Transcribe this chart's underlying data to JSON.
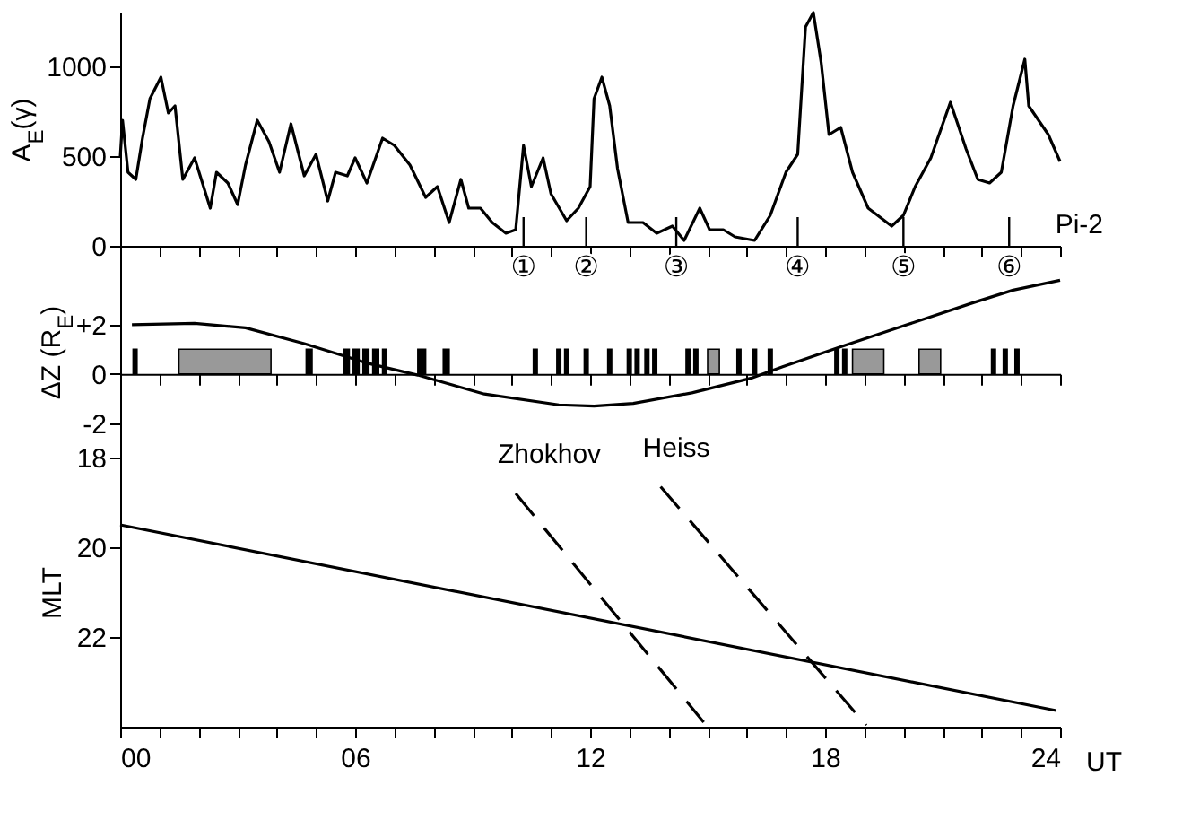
{
  "chart_data": [
    {
      "type": "line",
      "ylabel": "A$_{E}$(γ)",
      "color": "#000000",
      "xlim": [
        0,
        24
      ],
      "ylim": [
        0,
        1300
      ],
      "yticks": [
        0,
        500,
        1000
      ],
      "tick_labels": "y",
      "xticks": [
        {
          "value": 0,
          "label": null
        },
        {
          "value": 1,
          "label": null
        },
        {
          "value": 2,
          "label": null
        },
        {
          "value": 3,
          "label": null
        },
        {
          "value": 4,
          "label": null
        },
        {
          "value": 5,
          "label": null
        },
        {
          "value": 6,
          "label": null
        },
        {
          "value": 7,
          "label": null
        },
        {
          "value": 8,
          "label": null
        },
        {
          "value": 9,
          "label": null
        },
        {
          "value": 10,
          "label": null
        },
        {
          "value": 11,
          "label": null
        },
        {
          "value": 12,
          "label": null
        },
        {
          "value": 13,
          "label": null
        },
        {
          "value": 14,
          "label": null
        },
        {
          "value": 15,
          "label": null
        },
        {
          "value": 16,
          "label": null
        },
        {
          "value": 17,
          "label": null
        },
        {
          "value": 18,
          "label": null
        },
        {
          "value": 19,
          "label": null
        },
        {
          "value": 20,
          "label": null
        },
        {
          "value": 21,
          "label": null
        },
        {
          "value": 22,
          "label": null
        },
        {
          "value": 23,
          "label": null
        },
        {
          "value": 24,
          "label": null
        }
      ],
      "x": [
        0,
        0.06,
        0.2,
        0.4,
        0.57,
        0.76,
        1.04,
        1.23,
        1.4,
        1.6,
        1.9,
        2.1,
        2.3,
        2.46,
        2.75,
        3.0,
        3.2,
        3.5,
        3.8,
        4.07,
        4.36,
        4.7,
        5.0,
        5.3,
        5.5,
        5.8,
        6.0,
        6.3,
        6.7,
        7.0,
        7.4,
        7.8,
        8.1,
        8.4,
        8.7,
        8.9,
        9.2,
        9.5,
        9.85,
        10.1,
        10.3,
        10.5,
        10.8,
        11.0,
        11.4,
        11.7,
        12.0,
        12.1,
        12.3,
        12.5,
        12.7,
        12.97,
        13.35,
        13.7,
        14.1,
        14.4,
        14.8,
        15.05,
        15.4,
        15.7,
        16.2,
        16.6,
        17.0,
        17.3,
        17.5,
        17.7,
        17.9,
        18.1,
        18.4,
        18.7,
        19.1,
        19.7,
        20.0,
        20.3,
        20.7,
        21.2,
        21.6,
        21.9,
        22.2,
        22.5,
        22.8,
        23.1,
        23.2,
        23.7,
        24.0
      ],
      "values": [
        490,
        700,
        410,
        370,
        600,
        820,
        940,
        740,
        780,
        370,
        490,
        350,
        210,
        410,
        350,
        230,
        450,
        700,
        580,
        410,
        680,
        390,
        510,
        250,
        410,
        390,
        490,
        350,
        600,
        560,
        450,
        270,
        330,
        130,
        370,
        210,
        210,
        130,
        70,
        90,
        560,
        330,
        490,
        290,
        140,
        210,
        330,
        820,
        940,
        780,
        430,
        130,
        130,
        70,
        110,
        30,
        210,
        90,
        90,
        50,
        30,
        170,
        410,
        510,
        1220,
        1300,
        1020,
        620,
        660,
        410,
        210,
        110,
        170,
        330,
        490,
        800,
        540,
        370,
        350,
        410,
        780,
        1040,
        780,
        620,
        470
      ],
      "ref_lines": [
        {
          "axis": "x",
          "value": 10.3,
          "label": "①"
        },
        {
          "axis": "x",
          "value": 11.9,
          "label": "②"
        },
        {
          "axis": "x",
          "value": 14.2,
          "label": "③"
        },
        {
          "axis": "x",
          "value": 17.3,
          "label": "④"
        },
        {
          "axis": "x",
          "value": 20.0,
          "label": "⑤"
        },
        {
          "axis": "x",
          "value": 22.7,
          "label": "⑥"
        }
      ],
      "annotations": [
        "Pi-2"
      ]
    },
    {
      "type": "line",
      "ylabel": "ΔZ (R$_{E}$)",
      "color": "#000000",
      "xlim": [
        0,
        24
      ],
      "ylim": [
        -3.4,
        5.2
      ],
      "yticks": [
        {
          "value": 2,
          "label": "+2"
        },
        0,
        -2
      ],
      "tick_labels": "y",
      "xticks": [
        {
          "value": 0,
          "label": null
        },
        {
          "value": 1,
          "label": null
        },
        {
          "value": 2,
          "label": null
        },
        {
          "value": 3,
          "label": null
        },
        {
          "value": 4,
          "label": null
        },
        {
          "value": 5,
          "label": null
        },
        {
          "value": 6,
          "label": null
        },
        {
          "value": 7,
          "label": null
        },
        {
          "value": 8,
          "label": null
        },
        {
          "value": 9,
          "label": null
        },
        {
          "value": 10,
          "label": null
        },
        {
          "value": 11,
          "label": null
        },
        {
          "value": 12,
          "label": null
        },
        {
          "value": 13,
          "label": null
        },
        {
          "value": 14,
          "label": null
        },
        {
          "value": 15,
          "label": null
        },
        {
          "value": 16,
          "label": null
        },
        {
          "value": 17,
          "label": null
        },
        {
          "value": 18,
          "label": null
        },
        {
          "value": 19,
          "label": null
        },
        {
          "value": 20,
          "label": null
        },
        {
          "value": 21,
          "label": null
        },
        {
          "value": 22,
          "label": null
        },
        {
          "value": 23,
          "label": null
        },
        {
          "value": 24,
          "label": null
        }
      ],
      "x": [
        0.3,
        1.9,
        3.2,
        4.7,
        6.25,
        7.6,
        9.3,
        11.2,
        12.1,
        13.1,
        14.6,
        16.1,
        16.9,
        18.4,
        20.1,
        21.8,
        22.8,
        24.0
      ],
      "values": [
        2.0,
        2.05,
        1.87,
        1.23,
        0.46,
        -0.05,
        -0.82,
        -1.26,
        -1.31,
        -1.2,
        -0.77,
        -0.18,
        0.28,
        1.1,
        2.0,
        2.9,
        3.4,
        3.8
      ],
      "bands": [
        {
          "axis": "x",
          "from": 0.33,
          "to": 0.43,
          "color": "#000000"
        },
        {
          "axis": "x",
          "from": 1.5,
          "to": 3.85,
          "color": "#999999"
        },
        {
          "axis": "x",
          "from": 4.75,
          "to": 4.9,
          "color": "#000000"
        },
        {
          "axis": "x",
          "from": 5.7,
          "to": 5.85,
          "color": "#000000"
        },
        {
          "axis": "x",
          "from": 5.95,
          "to": 6.1,
          "color": "#000000"
        },
        {
          "axis": "x",
          "from": 6.2,
          "to": 6.35,
          "color": "#000000"
        },
        {
          "axis": "x",
          "from": 6.45,
          "to": 6.6,
          "color": "#000000"
        },
        {
          "axis": "x",
          "from": 6.7,
          "to": 6.8,
          "color": "#000000"
        },
        {
          "axis": "x",
          "from": 7.6,
          "to": 7.8,
          "color": "#000000"
        },
        {
          "axis": "x",
          "from": 8.25,
          "to": 8.4,
          "color": "#000000"
        },
        {
          "axis": "x",
          "from": 10.55,
          "to": 10.65,
          "color": "#000000"
        },
        {
          "axis": "x",
          "from": 11.15,
          "to": 11.25,
          "color": "#000000"
        },
        {
          "axis": "x",
          "from": 11.35,
          "to": 11.45,
          "color": "#000000"
        },
        {
          "axis": "x",
          "from": 11.85,
          "to": 11.95,
          "color": "#000000"
        },
        {
          "axis": "x",
          "from": 12.45,
          "to": 12.55,
          "color": "#000000"
        },
        {
          "axis": "x",
          "from": 12.95,
          "to": 13.05,
          "color": "#000000"
        },
        {
          "axis": "x",
          "from": 13.15,
          "to": 13.25,
          "color": "#000000"
        },
        {
          "axis": "x",
          "from": 13.4,
          "to": 13.5,
          "color": "#000000"
        },
        {
          "axis": "x",
          "from": 13.6,
          "to": 13.7,
          "color": "#000000"
        },
        {
          "axis": "x",
          "from": 14.45,
          "to": 14.55,
          "color": "#000000"
        },
        {
          "axis": "x",
          "from": 14.65,
          "to": 14.75,
          "color": "#000000"
        },
        {
          "axis": "x",
          "from": 15.0,
          "to": 15.3,
          "color": "#999999"
        },
        {
          "axis": "x",
          "from": 15.75,
          "to": 15.85,
          "color": "#000000"
        },
        {
          "axis": "x",
          "from": 16.15,
          "to": 16.25,
          "color": "#000000"
        },
        {
          "axis": "x",
          "from": 16.55,
          "to": 16.65,
          "color": "#000000"
        },
        {
          "axis": "x",
          "from": 18.25,
          "to": 18.35,
          "color": "#000000"
        },
        {
          "axis": "x",
          "from": 18.45,
          "to": 18.55,
          "color": "#000000"
        },
        {
          "axis": "x",
          "from": 18.7,
          "to": 19.5,
          "color": "#999999"
        },
        {
          "axis": "x",
          "from": 20.4,
          "to": 20.95,
          "color": "#999999"
        },
        {
          "axis": "x",
          "from": 22.25,
          "to": 22.35,
          "color": "#000000"
        },
        {
          "axis": "x",
          "from": 22.55,
          "to": 22.65,
          "color": "#000000"
        },
        {
          "axis": "x",
          "from": 22.85,
          "to": 22.95,
          "color": "#000000"
        }
      ]
    },
    {
      "type": "line",
      "ylabel": "MLT",
      "xlabel": "UT",
      "xlim": [
        0,
        24
      ],
      "ylim": [
        24,
        18
      ],
      "yticks": [
        18,
        20,
        22
      ],
      "xticks": [
        {
          "value": 0,
          "label": "00"
        },
        {
          "value": 1,
          "label": null
        },
        {
          "value": 2,
          "label": null
        },
        {
          "value": 3,
          "label": null
        },
        {
          "value": 4,
          "label": null
        },
        {
          "value": 5,
          "label": null
        },
        {
          "value": 6,
          "label": "06"
        },
        {
          "value": 7,
          "label": null
        },
        {
          "value": 8,
          "label": null
        },
        {
          "value": 9,
          "label": null
        },
        {
          "value": 10,
          "label": null
        },
        {
          "value": 11,
          "label": null
        },
        {
          "value": 12,
          "label": "12"
        },
        {
          "value": 13,
          "label": null
        },
        {
          "value": 14,
          "label": null
        },
        {
          "value": 15,
          "label": null
        },
        {
          "value": 16,
          "label": null
        },
        {
          "value": 17,
          "label": null
        },
        {
          "value": 18,
          "label": "18"
        },
        {
          "value": 19,
          "label": null
        },
        {
          "value": 20,
          "label": null
        },
        {
          "value": 21,
          "label": null
        },
        {
          "value": 22,
          "label": null
        },
        {
          "value": 23,
          "label": null
        },
        {
          "value": 24,
          "label": "24"
        }
      ],
      "series": [
        {
          "color": "#000000",
          "line_style": "solid",
          "x": [
            0,
            23.9
          ],
          "values": [
            19.5,
            23.64
          ]
        },
        {
          "name": "Zhokhov",
          "color": "#000000",
          "line_style": "dashed",
          "x": [
            10.1,
            14.9
          ],
          "values": [
            18.8,
            23.9
          ]
        },
        {
          "name": "Heiss",
          "color": "#000000",
          "line_style": "dashed",
          "x": [
            13.8,
            19.05
          ],
          "values": [
            18.65,
            23.97
          ]
        }
      ]
    }
  ]
}
